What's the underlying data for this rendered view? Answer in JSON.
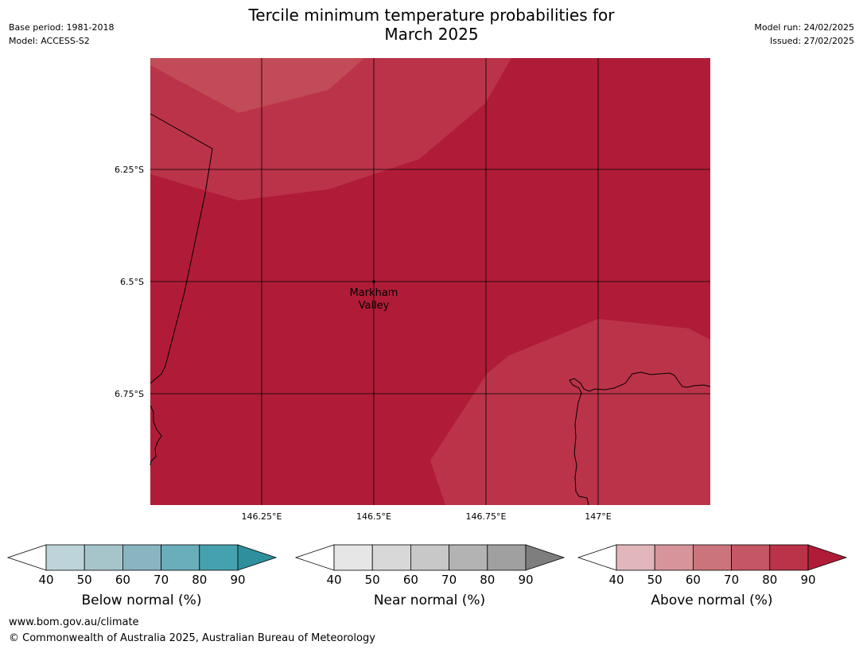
{
  "header": {
    "title_line1": "Tercile minimum temperature probabilities for",
    "title_line2": "March 2025",
    "base_period": "Base period: 1981-2018",
    "model": "Model: ACCESS-S2",
    "model_run": "Model run: 24/02/2025",
    "issued": "Issued: 27/02/2025"
  },
  "map": {
    "lat_labels": [
      "6.25°S",
      "6.5°S",
      "6.75°S"
    ],
    "lon_labels": [
      "146.25°E",
      "146.5°E",
      "146.75°E",
      "147°E"
    ],
    "place": {
      "name_line1": "Markham",
      "name_line2": "Valley"
    },
    "colors": {
      "above_90": "#b01c37",
      "above_80": "#bb3349",
      "above_70": "#c14b56"
    }
  },
  "colorbars": [
    {
      "label": "Below normal (%)",
      "ticks": [
        "40",
        "50",
        "60",
        "70",
        "80",
        "90"
      ],
      "colors": [
        "#ffffff",
        "#bdd4da",
        "#a6c5cb",
        "#89b5c1",
        "#6aaebb",
        "#46a1af",
        "#2f8f9d"
      ]
    },
    {
      "label": "Near normal (%)",
      "ticks": [
        "40",
        "50",
        "60",
        "70",
        "80",
        "90"
      ],
      "colors": [
        "#ffffff",
        "#e6e6e6",
        "#d8d8d8",
        "#c8c8c8",
        "#b3b3b3",
        "#a0a0a0",
        "#7e7e7e"
      ]
    },
    {
      "label": "Above normal (%)",
      "ticks": [
        "40",
        "50",
        "60",
        "70",
        "80",
        "90"
      ],
      "colors": [
        "#ffffff",
        "#e1b7bc",
        "#d7949b",
        "#cb747b",
        "#c45665",
        "#bb3349",
        "#b01c37"
      ]
    }
  ],
  "footer": {
    "url": "www.bom.gov.au/climate",
    "copyright": "© Commonwealth of Australia 2025, Australian Bureau of Meteorology"
  }
}
